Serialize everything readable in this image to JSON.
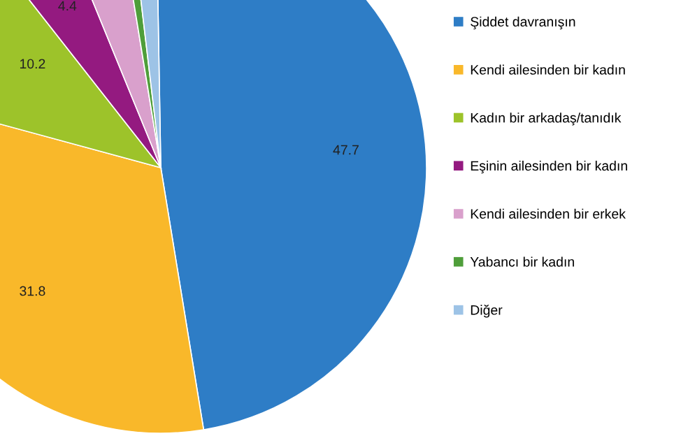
{
  "chart_data": {
    "type": "pie",
    "categories": [
      "Şiddet davranışın",
      "Kendi ailesinden bir kadın",
      "Kadın bir arkadaş/tanıdık",
      "Eşinin ailesinden bir kadın",
      "Kendi ailesinden bir erkek",
      "Yabancı bir kadın",
      "Diğer"
    ],
    "values": [
      47.7,
      31.8,
      10.2,
      4.4,
      3.6,
      0.7,
      1.6
    ],
    "colors": [
      "#2e7dc6",
      "#f9b82a",
      "#9dc32a",
      "#941a80",
      "#d9a0cc",
      "#4f9e3a",
      "#9dc3e6"
    ],
    "value_labels": [
      "47.7",
      "31.8",
      "10.2",
      "4.4",
      null,
      null,
      null
    ],
    "legend": "right"
  }
}
